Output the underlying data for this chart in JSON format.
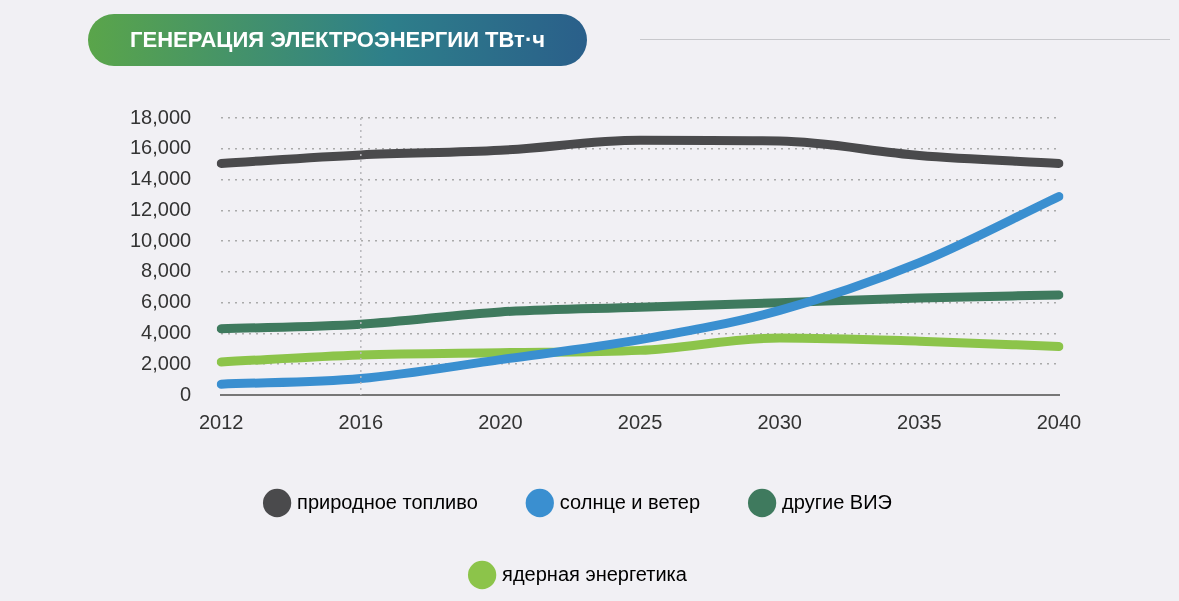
{
  "chart_data": {
    "type": "line",
    "title": "ГЕНЕРАЦИЯ ЭЛЕКТРОЭНЕРГИИ ТВт·ч",
    "categories": [
      "2012",
      "2016",
      "2020",
      "2025",
      "2030",
      "2035",
      "2040"
    ],
    "series": [
      {
        "name": "природное топливо",
        "color": "#4a4a4c",
        "values": [
          15050,
          15600,
          15900,
          16550,
          16500,
          15570,
          15050
        ]
      },
      {
        "name": "солнце и ветер",
        "color": "#3a8fd0",
        "values": [
          700,
          1070,
          2300,
          3600,
          5500,
          8600,
          12900
        ]
      },
      {
        "name": "другие ВИЭ",
        "color": "#3f7a5e",
        "values": [
          4300,
          4600,
          5400,
          5700,
          6000,
          6300,
          6500
        ]
      },
      {
        "name": "ядерная энергетика",
        "color": "#8cc44a",
        "values": [
          2150,
          2600,
          2750,
          2900,
          3700,
          3500,
          3150
        ]
      }
    ],
    "ylim": [
      0,
      18000
    ],
    "yticks": [
      0,
      {
        "value": 2000,
        "label": "2,000"
      },
      {
        "value": 4000,
        "label": "4,000"
      },
      {
        "value": 6000,
        "label": "6,000"
      },
      {
        "value": 8000,
        "label": "8,000"
      },
      {
        "value": 10000,
        "label": "10,000"
      },
      {
        "value": 12000,
        "label": "12,000"
      },
      {
        "value": 14000,
        "label": "14,000"
      },
      {
        "value": 16000,
        "label": "16,000"
      },
      {
        "value": 18000,
        "label": "18,000"
      }
    ],
    "ref_lines": [
      {
        "axis": "x",
        "value": "2016",
        "line_style": "dotted",
        "color": "#b8b8bc"
      }
    ],
    "grid": "y",
    "legend": "bottom",
    "marker": "none",
    "line_style": "solid"
  }
}
